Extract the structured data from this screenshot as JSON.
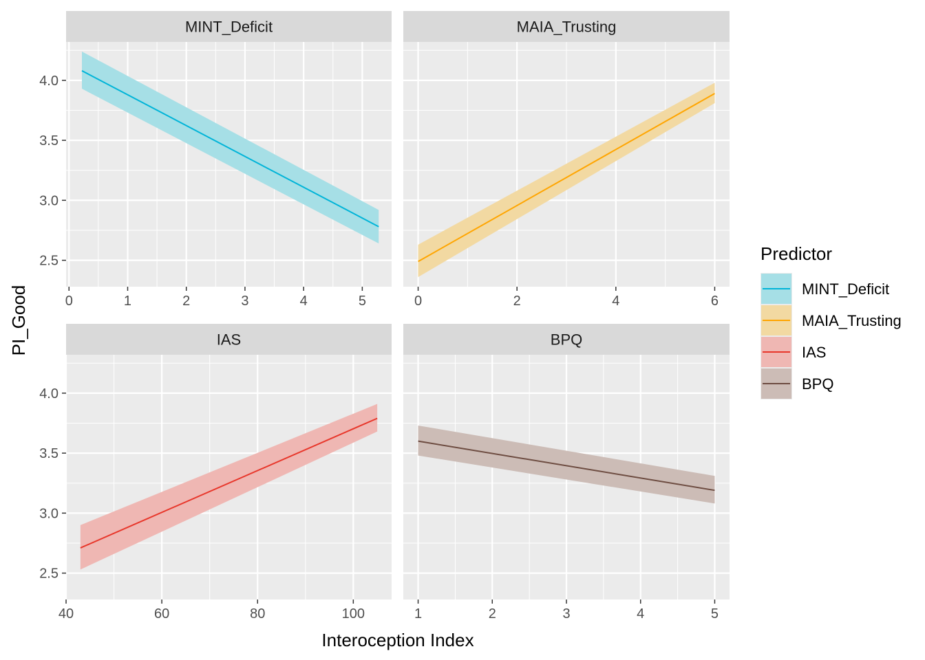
{
  "chart_data": {
    "type": "line",
    "xlabel": "Interoception Index",
    "ylabel": "PI_Good",
    "legend": {
      "title": "Predictor",
      "placement": "right",
      "entries": [
        "MINT_Deficit",
        "MAIA_Trusting",
        "IAS",
        "BPQ"
      ]
    },
    "shared_y": {
      "ylim": [
        2.28,
        4.32
      ],
      "ticks": [
        "2.5",
        "3.0",
        "3.5",
        "4.0"
      ]
    },
    "grid": true,
    "panels": [
      {
        "name": "MINT_Deficit",
        "color": "#00B4D8",
        "fill": "#A6DFE6",
        "xlim": [
          -0.05,
          5.5
        ],
        "xticks": [
          "0",
          "1",
          "2",
          "3",
          "4",
          "5"
        ],
        "x": [
          0.22,
          5.28
        ],
        "y": [
          4.08,
          2.78
        ],
        "ci_lower": [
          3.93,
          2.64
        ],
        "ci_upper": [
          4.24,
          2.92
        ]
      },
      {
        "name": "MAIA_Trusting",
        "color": "#FFA500",
        "fill": "#F2D9A2",
        "xlim": [
          -0.3,
          6.3
        ],
        "xticks": [
          "0",
          "2",
          "4",
          "6"
        ],
        "x": [
          0,
          6
        ],
        "y": [
          2.49,
          3.89
        ],
        "ci_lower": [
          2.36,
          3.81
        ],
        "ci_upper": [
          2.63,
          3.98
        ]
      },
      {
        "name": "IAS",
        "color": "#E8362A",
        "fill": "#EFB7B3",
        "xlim": [
          40,
          108
        ],
        "xticks": [
          "40",
          "60",
          "80",
          "100"
        ],
        "x": [
          43,
          105
        ],
        "y": [
          2.71,
          3.79
        ],
        "ci_lower": [
          2.53,
          3.68
        ],
        "ci_upper": [
          2.9,
          3.91
        ]
      },
      {
        "name": "BPQ",
        "color": "#6D4C41",
        "fill": "#CCBCB6",
        "xlim": [
          0.8,
          5.2
        ],
        "xticks": [
          "1",
          "2",
          "3",
          "4",
          "5"
        ],
        "x": [
          1,
          5
        ],
        "y": [
          3.6,
          3.19
        ],
        "ci_lower": [
          3.48,
          3.08
        ],
        "ci_upper": [
          3.73,
          3.31
        ]
      }
    ]
  }
}
